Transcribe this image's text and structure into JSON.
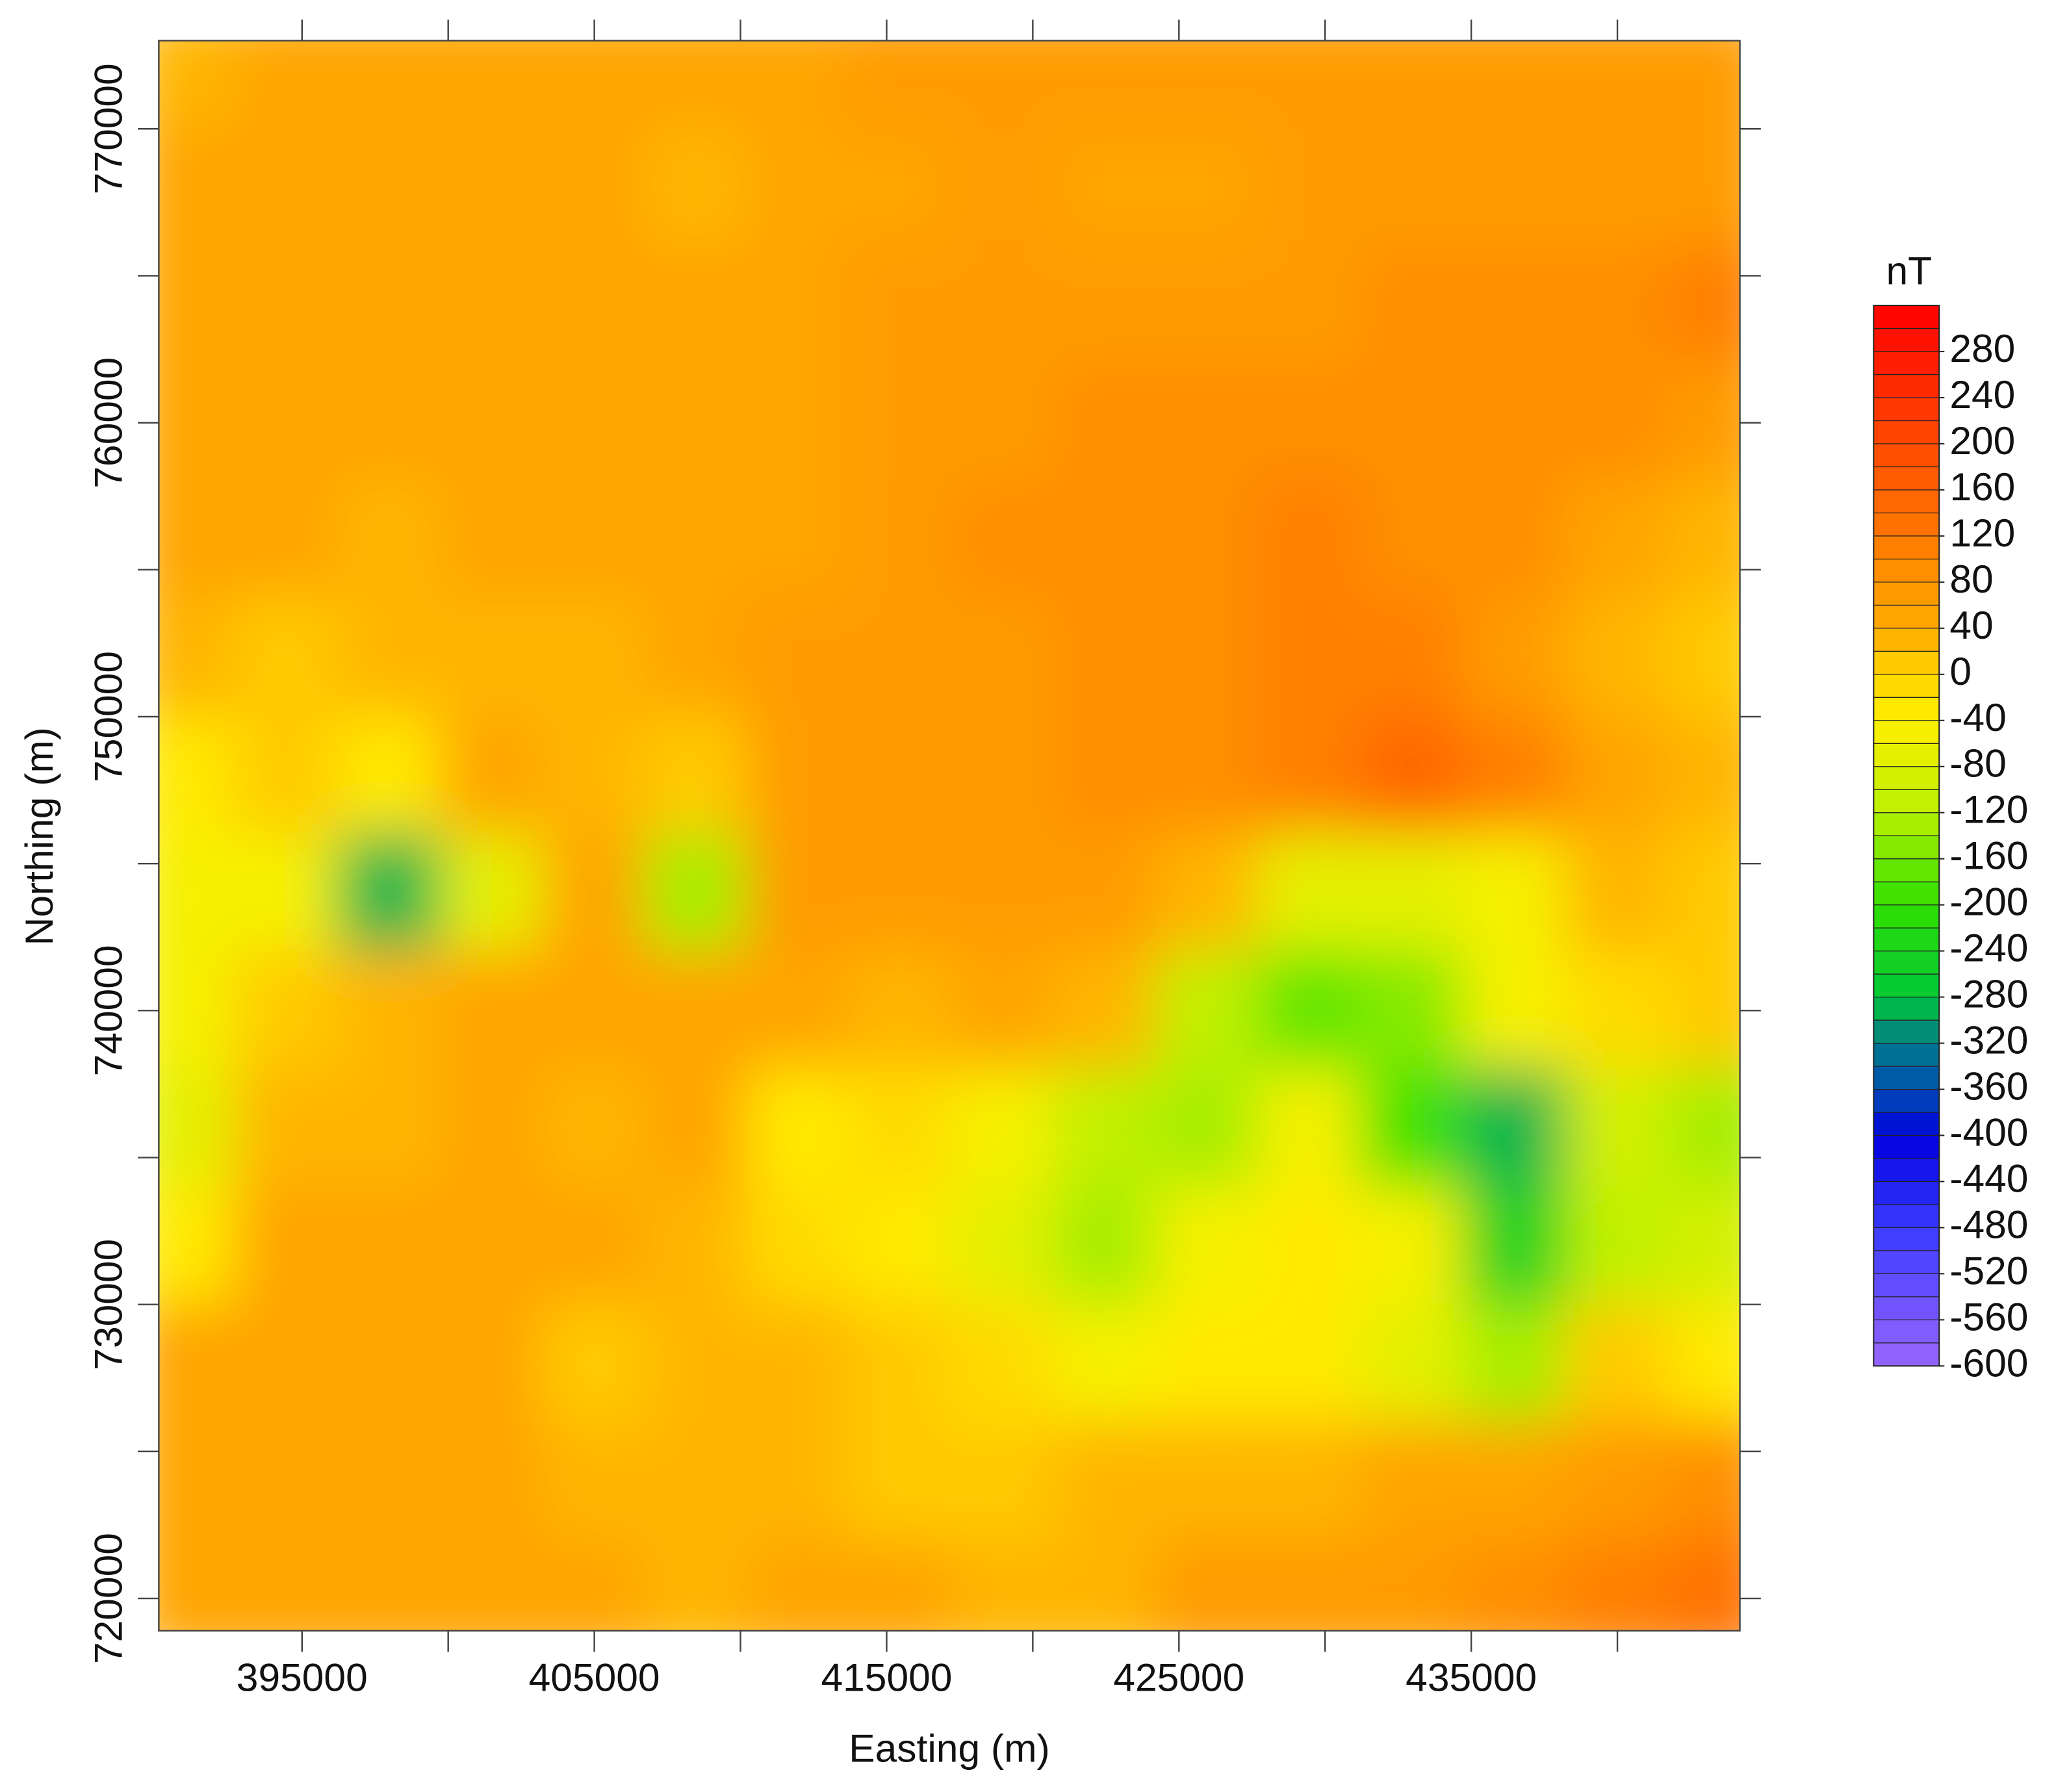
{
  "chart_data": {
    "type": "contour",
    "x_label": "Easting (m)",
    "y_label": "Northing (m)",
    "xlim": [
      390100,
      444190
    ],
    "ylim": [
      718900,
      773000
    ],
    "xticks": [
      395000,
      405000,
      415000,
      425000,
      435000
    ],
    "xminor_ticks": [
      400000,
      410000,
      420000,
      430000,
      440000
    ],
    "yticks": [
      720000,
      730000,
      740000,
      750000,
      760000,
      770000
    ],
    "yminor_ticks": [
      725000,
      735000,
      745000,
      755000,
      765000
    ],
    "x": [
      391000,
      394500,
      398000,
      401500,
      405000,
      408500,
      412000,
      415500,
      419000,
      422500,
      426000,
      429500,
      433000,
      436500,
      440000,
      443500
    ],
    "y": [
      772000,
      768000,
      764000,
      760000,
      756000,
      752000,
      748000,
      744000,
      740000,
      736000,
      732000,
      728000,
      724000,
      720000
    ],
    "z": [
      [
        30,
        40,
        45,
        50,
        55,
        40,
        50,
        65,
        75,
        75,
        75,
        75,
        70,
        70,
        70,
        70
      ],
      [
        50,
        50,
        45,
        50,
        40,
        35,
        40,
        50,
        60,
        55,
        55,
        65,
        70,
        70,
        70,
        65
      ],
      [
        45,
        40,
        50,
        55,
        50,
        40,
        45,
        60,
        65,
        60,
        60,
        70,
        85,
        90,
        95,
        100
      ],
      [
        55,
        45,
        40,
        40,
        45,
        40,
        45,
        70,
        75,
        80,
        85,
        90,
        95,
        90,
        80,
        60
      ],
      [
        50,
        45,
        30,
        40,
        40,
        40,
        50,
        65,
        80,
        90,
        95,
        100,
        95,
        80,
        50,
        30
      ],
      [
        20,
        10,
        30,
        30,
        30,
        40,
        60,
        65,
        75,
        90,
        95,
        110,
        100,
        70,
        30,
        10
      ],
      [
        -40,
        10,
        -40,
        40,
        35,
        10,
        60,
        65,
        65,
        80,
        95,
        110,
        140,
        110,
        40,
        30
      ],
      [
        -60,
        -60,
        -300,
        -80,
        50,
        -140,
        60,
        60,
        60,
        70,
        20,
        -80,
        -80,
        -50,
        20,
        10
      ],
      [
        -60,
        10,
        30,
        40,
        40,
        45,
        40,
        30,
        40,
        20,
        -120,
        -180,
        -150,
        -60,
        -10,
        10
      ],
      [
        -80,
        20,
        30,
        40,
        35,
        40,
        -40,
        -20,
        -60,
        -120,
        -140,
        -60,
        -200,
        -300,
        -100,
        -140
      ],
      [
        -40,
        40,
        45,
        40,
        40,
        30,
        -20,
        -40,
        -80,
        -140,
        -60,
        -40,
        -60,
        -250,
        -120,
        -100
      ],
      [
        40,
        40,
        45,
        40,
        10,
        20,
        30,
        0,
        -20,
        -60,
        -40,
        -40,
        -80,
        -140,
        0,
        -40
      ],
      [
        45,
        45,
        40,
        40,
        30,
        30,
        25,
        10,
        10,
        20,
        20,
        20,
        40,
        50,
        60,
        80
      ],
      [
        40,
        40,
        45,
        50,
        45,
        35,
        40,
        40,
        30,
        30,
        60,
        60,
        70,
        90,
        100,
        130
      ]
    ],
    "colorbar_title": "nT",
    "clim": [
      -600,
      320
    ],
    "level_step": 20,
    "colorbar_ticks": [
      280,
      240,
      200,
      160,
      120,
      80,
      40,
      0,
      -40,
      -80,
      -120,
      -160,
      -200,
      -240,
      -280,
      -320,
      -360,
      -400,
      -440,
      -480,
      -520,
      -560,
      -600
    ],
    "colorscale": [
      [
        -600,
        "#9a66ff"
      ],
      [
        -480,
        "#3a3aff"
      ],
      [
        -400,
        "#0000e0"
      ],
      [
        -360,
        "#0050b0"
      ],
      [
        -320,
        "#007a8a"
      ],
      [
        -280,
        "#00c83a"
      ],
      [
        -200,
        "#30e000"
      ],
      [
        -120,
        "#b8f000"
      ],
      [
        -40,
        "#fff000"
      ],
      [
        0,
        "#ffd400"
      ],
      [
        40,
        "#ffaa00"
      ],
      [
        80,
        "#ff9600"
      ],
      [
        120,
        "#ff7800"
      ],
      [
        200,
        "#ff4a00"
      ],
      [
        320,
        "#ff0000"
      ]
    ]
  }
}
